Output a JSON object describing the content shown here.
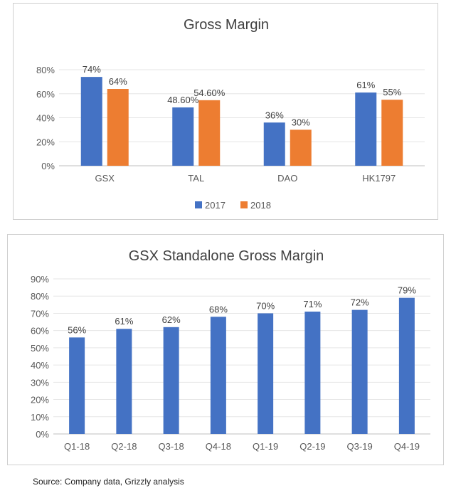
{
  "chart_data": [
    {
      "type": "bar",
      "title": "Gross Margin",
      "categories": [
        "GSX",
        "TAL",
        "DAO",
        "HK1797"
      ],
      "series": [
        {
          "name": "2017",
          "values": [
            74,
            48.6,
            36,
            61
          ],
          "labels": [
            "74%",
            "48.60%",
            "36%",
            "61%"
          ],
          "color": "#4472C4"
        },
        {
          "name": "2018",
          "values": [
            64,
            54.6,
            30,
            55
          ],
          "labels": [
            "64%",
            "54.60%",
            "30%",
            "55%"
          ],
          "color": "#ED7D31"
        }
      ],
      "yticks": [
        "0%",
        "20%",
        "40%",
        "60%",
        "80%"
      ],
      "ylim": [
        0,
        80
      ],
      "legend": "bottom"
    },
    {
      "type": "bar",
      "title": "GSX Standalone Gross Margin",
      "categories": [
        "Q1-18",
        "Q2-18",
        "Q3-18",
        "Q4-18",
        "Q1-19",
        "Q2-19",
        "Q3-19",
        "Q4-19"
      ],
      "series": [
        {
          "values": [
            56,
            61,
            62,
            68,
            70,
            71,
            72,
            79
          ],
          "labels": [
            "56%",
            "61%",
            "62%",
            "68%",
            "70%",
            "71%",
            "72%",
            "79%"
          ],
          "color": "#4472C4"
        }
      ],
      "yticks": [
        "0%",
        "10%",
        "20%",
        "30%",
        "40%",
        "50%",
        "60%",
        "70%",
        "80%",
        "90%"
      ],
      "ylim": [
        0,
        90
      ],
      "legend": "none"
    }
  ],
  "source": "Source: Company data, Grizzly analysis"
}
